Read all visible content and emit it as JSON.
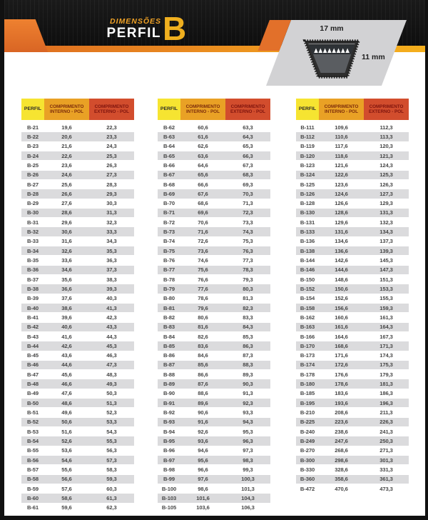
{
  "header": {
    "kicker": "DIMENSÕES",
    "title": "PERFIL",
    "profile_letter": "B",
    "diagram": {
      "top_width_label": "17 mm",
      "height_label": "11 mm"
    }
  },
  "columns": {
    "perfil": "PERFIL",
    "interno_line1": "COMPRIMENTO",
    "interno_line2": "INTERNO - POL",
    "externo_line1": "COMPRIMENTO",
    "externo_line2": "EXTERNO - POL"
  },
  "colors": {
    "banner_black": "#141414",
    "accent_orange": "#dd6a21",
    "accent_gold": "#f5b01d",
    "header_yellow": "#f6e431",
    "header_orange": "#e9a125",
    "header_red": "#d24d2d",
    "row_stripe_gray": "#dbdbdd",
    "diagram_gray": "#d2d2d4"
  },
  "tables": [
    {
      "rows": [
        [
          "B-21",
          "19,6",
          "22,3"
        ],
        [
          "B-22",
          "20,6",
          "23,3"
        ],
        [
          "B-23",
          "21,6",
          "24,3"
        ],
        [
          "B-24",
          "22,6",
          "25,3"
        ],
        [
          "B-25",
          "23,6",
          "26,3"
        ],
        [
          "B-26",
          "24,6",
          "27,3"
        ],
        [
          "B-27",
          "25,6",
          "28,3"
        ],
        [
          "B-28",
          "26,6",
          "29,3"
        ],
        [
          "B-29",
          "27,6",
          "30,3"
        ],
        [
          "B-30",
          "28,6",
          "31,3"
        ],
        [
          "B-31",
          "29,6",
          "32,3"
        ],
        [
          "B-32",
          "30,6",
          "33,3"
        ],
        [
          "B-33",
          "31,6",
          "34,3"
        ],
        [
          "B-34",
          "32,6",
          "35,3"
        ],
        [
          "B-35",
          "33,6",
          "36,3"
        ],
        [
          "B-36",
          "34,6",
          "37,3"
        ],
        [
          "B-37",
          "35,6",
          "38,3"
        ],
        [
          "B-38",
          "36,6",
          "39,3"
        ],
        [
          "B-39",
          "37,6",
          "40,3"
        ],
        [
          "B-40",
          "38,6",
          "41,3"
        ],
        [
          "B-41",
          "39,6",
          "42,3"
        ],
        [
          "B-42",
          "40,6",
          "43,3"
        ],
        [
          "B-43",
          "41,6",
          "44,3"
        ],
        [
          "B-44",
          "42,6",
          "45,3"
        ],
        [
          "B-45",
          "43,6",
          "46,3"
        ],
        [
          "B-46",
          "44,6",
          "47,3"
        ],
        [
          "B-47",
          "45,6",
          "48,3"
        ],
        [
          "B-48",
          "46,6",
          "49,3"
        ],
        [
          "B-49",
          "47,6",
          "50,3"
        ],
        [
          "B-50",
          "48,6",
          "51,3"
        ],
        [
          "B-51",
          "49,6",
          "52,3"
        ],
        [
          "B-52",
          "50,6",
          "53,3"
        ],
        [
          "B-53",
          "51,6",
          "54,3"
        ],
        [
          "B-54",
          "52,6",
          "55,3"
        ],
        [
          "B-55",
          "53,6",
          "56,3"
        ],
        [
          "B-56",
          "54,6",
          "57,3"
        ],
        [
          "B-57",
          "55,6",
          "58,3"
        ],
        [
          "B-58",
          "56,6",
          "59,3"
        ],
        [
          "B-59",
          "57,6",
          "60,3"
        ],
        [
          "B-60",
          "58,6",
          "61,3"
        ],
        [
          "B-61",
          "59,6",
          "62,3"
        ]
      ]
    },
    {
      "rows": [
        [
          "B-62",
          "60,6",
          "63,3"
        ],
        [
          "B-63",
          "61,6",
          "64,3"
        ],
        [
          "B-64",
          "62,6",
          "65,3"
        ],
        [
          "B-65",
          "63,6",
          "66,3"
        ],
        [
          "B-66",
          "64,6",
          "67,3"
        ],
        [
          "B-67",
          "65,6",
          "68,3"
        ],
        [
          "B-68",
          "66,6",
          "69,3"
        ],
        [
          "B-69",
          "67,6",
          "70,3"
        ],
        [
          "B-70",
          "68,6",
          "71,3"
        ],
        [
          "B-71",
          "69,6",
          "72,3"
        ],
        [
          "B-72",
          "70,6",
          "73,3"
        ],
        [
          "B-73",
          "71,6",
          "74,3"
        ],
        [
          "B-74",
          "72,6",
          "75,3"
        ],
        [
          "B-75",
          "73,6",
          "76,3"
        ],
        [
          "B-76",
          "74,6",
          "77,3"
        ],
        [
          "B-77",
          "75,6",
          "78,3"
        ],
        [
          "B-78",
          "76,6",
          "79,3"
        ],
        [
          "B-79",
          "77,6",
          "80,3"
        ],
        [
          "B-80",
          "78,6",
          "81,3"
        ],
        [
          "B-81",
          "79,6",
          "82,3"
        ],
        [
          "B-82",
          "80,6",
          "83,3"
        ],
        [
          "B-83",
          "81,6",
          "84,3"
        ],
        [
          "B-84",
          "82,6",
          "85,3"
        ],
        [
          "B-85",
          "83,6",
          "86,3"
        ],
        [
          "B-86",
          "84,6",
          "87,3"
        ],
        [
          "B-87",
          "85,6",
          "88,3"
        ],
        [
          "B-88",
          "86,6",
          "89,3"
        ],
        [
          "B-89",
          "87,6",
          "90,3"
        ],
        [
          "B-90",
          "88,6",
          "91,3"
        ],
        [
          "B-91",
          "89,6",
          "92,3"
        ],
        [
          "B-92",
          "90,6",
          "93,3"
        ],
        [
          "B-93",
          "91,6",
          "94,3"
        ],
        [
          "B-94",
          "92,6",
          "95,3"
        ],
        [
          "B-95",
          "93,6",
          "96,3"
        ],
        [
          "B-96",
          "94,6",
          "97,3"
        ],
        [
          "B-97",
          "95,6",
          "98,3"
        ],
        [
          "B-98",
          "96,6",
          "99,3"
        ],
        [
          "B-99",
          "97,6",
          "100,3"
        ],
        [
          "B-100",
          "98,6",
          "101,3"
        ],
        [
          "B-103",
          "101,6",
          "104,3"
        ],
        [
          "B-105",
          "103,6",
          "106,3"
        ]
      ]
    },
    {
      "rows": [
        [
          "B-111",
          "109,6",
          "112,3"
        ],
        [
          "B-112",
          "110,6",
          "113,3"
        ],
        [
          "B-119",
          "117,6",
          "120,3"
        ],
        [
          "B-120",
          "118,6",
          "121,3"
        ],
        [
          "B-123",
          "121,6",
          "124,3"
        ],
        [
          "B-124",
          "122,6",
          "125,3"
        ],
        [
          "B-125",
          "123,6",
          "126,3"
        ],
        [
          "B-126",
          "124,6",
          "127,3"
        ],
        [
          "B-128",
          "126,6",
          "129,3"
        ],
        [
          "B-130",
          "128,6",
          "131,3"
        ],
        [
          "B-131",
          "129,6",
          "132,3"
        ],
        [
          "B-133",
          "131,6",
          "134,3"
        ],
        [
          "B-136",
          "134,6",
          "137,3"
        ],
        [
          "B-138",
          "136,6",
          "139,3"
        ],
        [
          "B-144",
          "142,6",
          "145,3"
        ],
        [
          "B-146",
          "144,6",
          "147,3"
        ],
        [
          "B-150",
          "148,6",
          "151,3"
        ],
        [
          "B-152",
          "150,6",
          "153,3"
        ],
        [
          "B-154",
          "152,6",
          "155,3"
        ],
        [
          "B-158",
          "156,6",
          "159,3"
        ],
        [
          "B-162",
          "160,6",
          "161,3"
        ],
        [
          "B-163",
          "161,6",
          "164,3"
        ],
        [
          "B-166",
          "164,6",
          "167,3"
        ],
        [
          "B-170",
          "168,6",
          "171,3"
        ],
        [
          "B-173",
          "171,6",
          "174,3"
        ],
        [
          "B-174",
          "172,6",
          "175,3"
        ],
        [
          "B-178",
          "176,6",
          "179,3"
        ],
        [
          "B-180",
          "178,6",
          "181,3"
        ],
        [
          "B-185",
          "183,6",
          "186,3"
        ],
        [
          "B-195",
          "193,6",
          "196,3"
        ],
        [
          "B-210",
          "208,6",
          "211,3"
        ],
        [
          "B-225",
          "223,6",
          "226,3"
        ],
        [
          "B-240",
          "238,6",
          "241,3"
        ],
        [
          "B-249",
          "247,6",
          "250,3"
        ],
        [
          "B-270",
          "268,6",
          "271,3"
        ],
        [
          "B-300",
          "298,6",
          "301,3"
        ],
        [
          "B-330",
          "328,6",
          "331,3"
        ],
        [
          "B-360",
          "358,6",
          "361,3"
        ],
        [
          "B-472",
          "470,6",
          "473,3"
        ]
      ]
    }
  ]
}
